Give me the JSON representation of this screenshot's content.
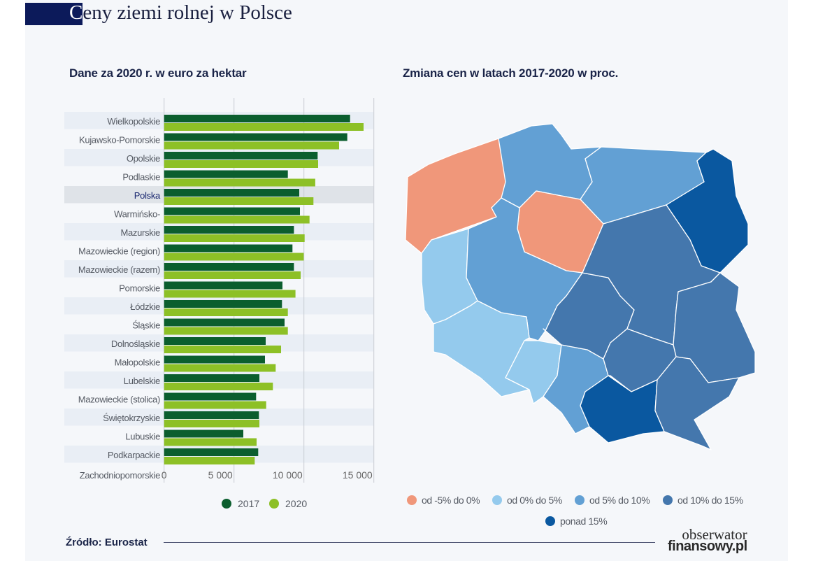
{
  "header": {
    "title_first_letter": "C",
    "title_rest": "eny ziemi rolnej w Polsce"
  },
  "footer": {
    "source": "Źródło: Eurostat",
    "logo_line1": "obserwator",
    "logo_line2": "finansowy.pl"
  },
  "colors": {
    "series_2017": "#0b5e2e",
    "series_2020": "#8dc026",
    "band": "#e9eef5",
    "band_highlight": "#dfe3e8",
    "highlight_label": "#1a2870"
  },
  "chart_data": [
    {
      "type": "bar",
      "orientation": "horizontal",
      "title": "Dane za 2020 r. w euro za hektar",
      "categories": [
        "Wielkopolskie",
        "Kujawsko-Pomorskie",
        "Opolskie",
        "Podlaskie",
        "Polska",
        "Warmińsko-",
        "Mazurskie",
        "Mazowieckie (region)",
        "Mazowieckie (razem)",
        "Pomorskie",
        "Łódzkie",
        "Śląskie",
        "Dolnośląskie",
        "Małopolskie",
        "Lubelskie",
        "Mazowieckie (stolica)",
        "Świętokrzyskie",
        "Lubuskie",
        "Podkarpackie",
        "Zachodniopomorskie"
      ],
      "highlight": "Polska",
      "series": [
        {
          "name": "2017",
          "values": [
            13300,
            13100,
            10980,
            8850,
            9665,
            9715,
            9285,
            9180,
            9285,
            8465,
            8430,
            8615,
            7265,
            7215,
            6815,
            6580,
            6780,
            5665,
            6730,
            null
          ]
        },
        {
          "name": "2020",
          "values": [
            14265,
            12515,
            11015,
            10810,
            10680,
            10400,
            10050,
            9985,
            9765,
            9395,
            8850,
            8850,
            8365,
            7980,
            7780,
            7300,
            6815,
            6615,
            6480,
            null
          ]
        }
      ],
      "xlim": [
        0,
        15000
      ],
      "xticks": [
        0,
        5000,
        10000,
        15000
      ],
      "xtick_labels": [
        "0",
        "5 000",
        "10 000",
        "15 000"
      ],
      "grid": true,
      "legend": "bottom"
    },
    {
      "type": "choropleth",
      "title": "Zmiana cen w latach 2017-2020 w proc.",
      "classes": [
        {
          "label": "od -5% do 0%",
          "color": "#f0977a"
        },
        {
          "label": "od 0% do 5%",
          "color": "#94caed"
        },
        {
          "label": "od 5% do 10%",
          "color": "#62a0d4"
        },
        {
          "label": "od 10% do 15%",
          "color": "#4477ad"
        },
        {
          "label": "ponad 15%",
          "color": "#0a58a0"
        }
      ],
      "regions": [
        {
          "region": "Zachodniopomorskie",
          "class": 0
        },
        {
          "region": "Pomorskie",
          "class": 2
        },
        {
          "region": "Warmińsko-Mazurskie",
          "class": 2
        },
        {
          "region": "Podlaskie",
          "class": 4
        },
        {
          "region": "Kujawsko-Pomorskie",
          "class": 0
        },
        {
          "region": "Lubuskie",
          "class": 1
        },
        {
          "region": "Wielkopolskie",
          "class": 2
        },
        {
          "region": "Dolnośląskie",
          "class": 1
        },
        {
          "region": "Opolskie",
          "class": 1
        },
        {
          "region": "Śląskie",
          "class": 2
        },
        {
          "region": "Łódzkie",
          "class": 3
        },
        {
          "region": "Mazowieckie",
          "class": 3
        },
        {
          "region": "Lubelskie",
          "class": 3
        },
        {
          "region": "Świętokrzyskie",
          "class": 3
        },
        {
          "region": "Małopolskie",
          "class": 4
        },
        {
          "region": "Podkarpackie",
          "class": 3
        }
      ]
    }
  ]
}
